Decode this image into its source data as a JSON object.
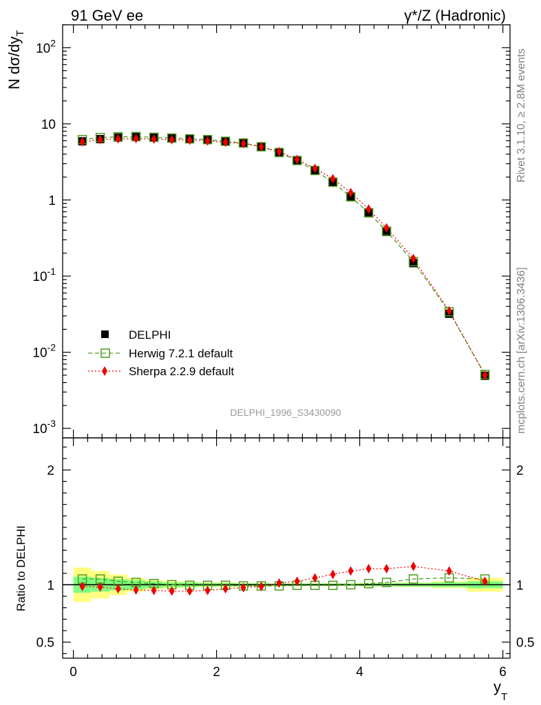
{
  "header": {
    "left": "91 GeV ee",
    "right": "γ*/Z (Hadronic)"
  },
  "side_texts": {
    "rivet": "Rivet 3.1.10, ≥ 2.8M events",
    "mcplots": "mcplots.cern.ch [arXiv:1306.3436]"
  },
  "watermark": "DELPHI_1996_S3430090",
  "chart_data": {
    "type": "scatter",
    "title": "",
    "xlabel": "y",
    "xlabel_sub": "T",
    "ylabel_main": "N dσ/dy",
    "ylabel_sub": "T",
    "ratio_ylabel": "Ratio to DELPHI",
    "xlim": [
      -0.15,
      6.1
    ],
    "ylim": [
      0.00075,
      200
    ],
    "yscale": "log",
    "ratio_ylim": [
      0.36,
      2.28
    ],
    "x_ticks": [
      "0",
      "2",
      "4",
      "6"
    ],
    "y_ticks": [
      {
        "base": "10",
        "exp": "-3"
      },
      {
        "base": "10",
        "exp": "-2"
      },
      {
        "base": "10",
        "exp": "-1"
      },
      {
        "base": "1",
        "exp": ""
      },
      {
        "base": "10",
        "exp": ""
      },
      {
        "base": "10",
        "exp": "2"
      }
    ],
    "ratio_y_ticks": [
      "0.5",
      "1",
      "2"
    ],
    "legend_position": "lower-left",
    "x": [
      0.125,
      0.375,
      0.625,
      0.875,
      1.125,
      1.375,
      1.625,
      1.875,
      2.125,
      2.375,
      2.625,
      2.875,
      3.125,
      3.375,
      3.625,
      3.875,
      4.125,
      4.375,
      4.75,
      5.25,
      5.75
    ],
    "series": [
      {
        "name": "DELPHI",
        "values": [
          5.9,
          6.3,
          6.6,
          6.7,
          6.6,
          6.5,
          6.4,
          6.2,
          5.9,
          5.6,
          5.05,
          4.25,
          3.3,
          2.45,
          1.72,
          1.1,
          0.67,
          0.38,
          0.148,
          0.032,
          0.0049
        ],
        "color": "#000000"
      },
      {
        "name": "Herwig 7.2.1 default",
        "values": [
          6.2,
          6.6,
          6.75,
          6.8,
          6.65,
          6.5,
          6.35,
          6.2,
          5.9,
          5.6,
          5.0,
          4.2,
          3.3,
          2.44,
          1.71,
          1.1,
          0.68,
          0.39,
          0.155,
          0.034,
          0.0051
        ],
        "ratio": [
          1.05,
          1.05,
          1.03,
          1.02,
          1.01,
          1.0,
          0.995,
          0.995,
          0.995,
          0.99,
          0.99,
          0.99,
          0.995,
          0.995,
          0.995,
          1.0,
          1.01,
          1.02,
          1.05,
          1.06,
          1.05
        ],
        "color": "#4a9a1a"
      },
      {
        "name": "Sherpa 2.2.9 default",
        "values": [
          5.8,
          6.2,
          6.35,
          6.4,
          6.3,
          6.2,
          6.1,
          5.95,
          5.75,
          5.5,
          5.0,
          4.3,
          3.4,
          2.6,
          1.9,
          1.25,
          0.76,
          0.43,
          0.17,
          0.035,
          0.005
        ],
        "ratio": [
          0.985,
          0.98,
          0.965,
          0.955,
          0.95,
          0.945,
          0.945,
          0.95,
          0.965,
          0.975,
          0.985,
          1.015,
          1.03,
          1.06,
          1.09,
          1.12,
          1.14,
          1.14,
          1.16,
          1.12,
          1.03
        ],
        "color": "#ee0000"
      }
    ],
    "ratio_bands": {
      "x_edges": [
        0.0,
        0.25,
        0.5,
        0.75,
        1.0,
        1.25,
        1.5,
        1.75,
        2.0,
        2.25,
        2.5,
        2.75,
        3.0,
        3.25,
        3.5,
        3.75,
        4.0,
        4.25,
        4.5,
        5.0,
        5.5,
        6.0
      ],
      "inner": [
        0.07,
        0.06,
        0.05,
        0.04,
        0.03,
        0.02,
        0.02,
        0.015,
        0.015,
        0.012,
        0.012,
        0.01,
        0.01,
        0.01,
        0.01,
        0.01,
        0.012,
        0.012,
        0.015,
        0.02,
        0.03
      ],
      "outer": [
        0.15,
        0.12,
        0.09,
        0.06,
        0.04,
        0.03,
        0.025,
        0.02,
        0.02,
        0.015,
        0.015,
        0.012,
        0.012,
        0.012,
        0.012,
        0.012,
        0.015,
        0.015,
        0.02,
        0.03,
        0.06
      ],
      "inner_color": "#80ff80",
      "outer_color": "#ffff80"
    }
  }
}
